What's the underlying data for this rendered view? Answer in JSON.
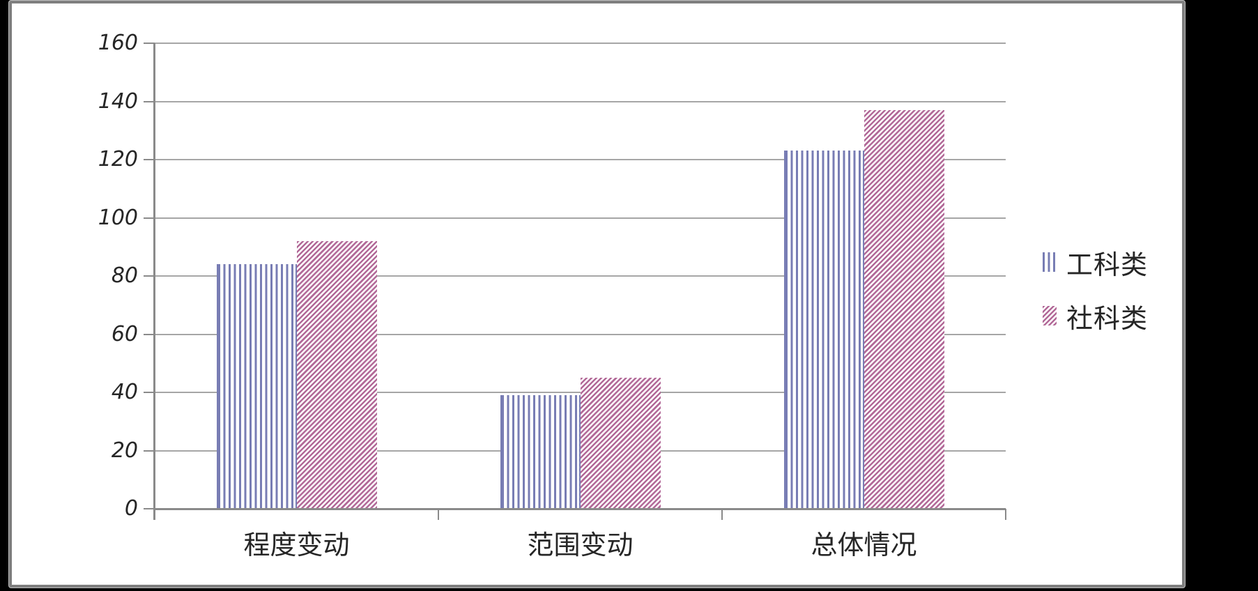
{
  "panel": {
    "background_color": "#ffffff",
    "surround_color": "#000000",
    "border_color": "#7f7f7f"
  },
  "chart_data": {
    "type": "bar",
    "categories": [
      "程度变动",
      "范围变动",
      "总体情况"
    ],
    "series": [
      {
        "name": "工科类",
        "values": [
          84,
          39,
          123
        ],
        "color": "#787db4",
        "pattern": "vertical-stripes"
      },
      {
        "name": "社科类",
        "values": [
          92,
          45,
          137
        ],
        "color": "#b26998",
        "pattern": "diagonal-stripes"
      }
    ],
    "title": "",
    "xlabel": "",
    "ylabel": "",
    "ylim": [
      0,
      160
    ],
    "yticks": [
      0,
      20,
      40,
      60,
      80,
      100,
      120,
      140,
      160
    ],
    "grid": "horizontal",
    "legend_position": "right",
    "gridline_color": "#a6a6a6",
    "axis_line_color": "#8a8a8a",
    "text_color": "#262626"
  }
}
